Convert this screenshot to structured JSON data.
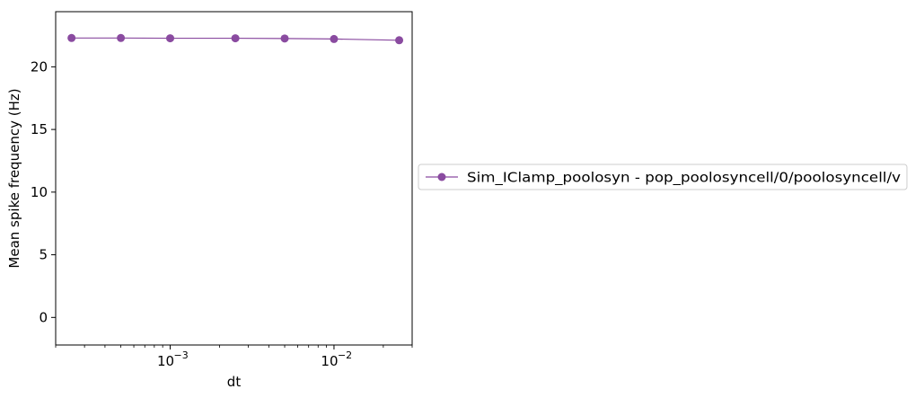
{
  "chart_data": {
    "type": "line",
    "title": "",
    "xlabel": "dt",
    "ylabel": "Mean spike frequency (Hz)",
    "x_scale": "log",
    "xlim": [
      0.0002,
      0.03
    ],
    "ylim": [
      -2.2,
      24.4
    ],
    "x_ticks": [
      {
        "value": 0.001,
        "base": "10",
        "exp": "−3"
      },
      {
        "value": 0.01,
        "base": "10",
        "exp": "−2"
      }
    ],
    "y_ticks": [
      {
        "value": 0,
        "label": "0"
      },
      {
        "value": 5,
        "label": "5"
      },
      {
        "value": 10,
        "label": "10"
      },
      {
        "value": 15,
        "label": "15"
      },
      {
        "value": 20,
        "label": "20"
      }
    ],
    "legend_position": "outside-right",
    "grid": false,
    "series": [
      {
        "name": "Sim_IClamp_poolosyn - pop_poolosyncell/0/poolosyncell/v",
        "color": "#8a4ba0",
        "marker": "circle",
        "x": [
          0.00025,
          0.0005,
          0.001,
          0.0025,
          0.005,
          0.01,
          0.025
        ],
        "y": [
          22.3,
          22.3,
          22.28,
          22.28,
          22.26,
          22.22,
          22.12
        ]
      }
    ]
  }
}
